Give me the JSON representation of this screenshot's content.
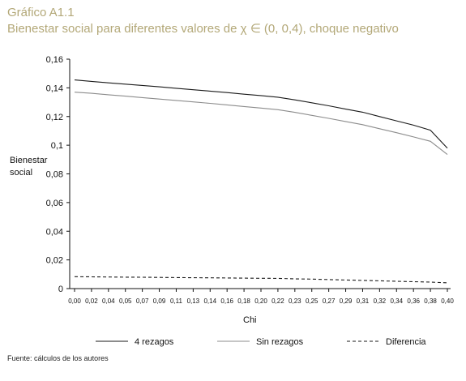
{
  "figure": {
    "label": "Gráfico A1.1",
    "title": "Bienestar social para diferentes valores de χ ∈ (0,  0,4), choque negativo",
    "source": "Fuente: cálculos de los autores"
  },
  "chart_data": {
    "type": "line",
    "xlabel": "Chi",
    "ylabel": "Bienestar social",
    "ylim": [
      0,
      0.16
    ],
    "yticks": [
      "0",
      "0,02",
      "0,04",
      "0,06",
      "0,08",
      "0,1",
      "0,12",
      "0,14",
      "0,16"
    ],
    "x": [
      0.0,
      0.02,
      0.04,
      0.05,
      0.07,
      0.09,
      0.11,
      0.13,
      0.14,
      0.16,
      0.18,
      0.2,
      0.22,
      0.23,
      0.25,
      0.27,
      0.29,
      0.31,
      0.32,
      0.34,
      0.36,
      0.38,
      0.4
    ],
    "xticks": [
      "0,00",
      "0,02",
      "0,04",
      "0,05",
      "0,07",
      "0,09",
      "0,11",
      "0,13",
      "0,14",
      "0,16",
      "0,18",
      "0,20",
      "0,22",
      "0,23",
      "0,25",
      "0,27",
      "0,29",
      "0,31",
      "0,32",
      "0,34",
      "0,36",
      "0,38",
      "0,40"
    ],
    "series": [
      {
        "name": "4 rezagos",
        "color": "#1a1a1a",
        "dash": "solid",
        "values": [
          0.1455,
          0.1445,
          0.1435,
          0.1426,
          0.1417,
          0.1407,
          0.1397,
          0.1387,
          0.1377,
          0.1367,
          0.1356,
          0.1346,
          0.1335,
          0.1316,
          0.1296,
          0.1275,
          0.1252,
          0.123,
          0.12,
          0.117,
          0.114,
          0.1105,
          0.098
        ]
      },
      {
        "name": "Sin rezagos",
        "color": "#8c8c8c",
        "dash": "solid",
        "values": [
          0.137,
          0.1362,
          0.1352,
          0.1342,
          0.1332,
          0.1322,
          0.1312,
          0.1302,
          0.1292,
          0.1281,
          0.127,
          0.1259,
          0.1248,
          0.1229,
          0.1208,
          0.1187,
          0.1165,
          0.1143,
          0.1115,
          0.1087,
          0.1058,
          0.1027,
          0.0935
        ]
      },
      {
        "name": "Diferencia",
        "color": "#1a1a1a",
        "dash": "dashed",
        "values": [
          0.0083,
          0.0082,
          0.0081,
          0.008,
          0.0079,
          0.0078,
          0.0077,
          0.0076,
          0.0075,
          0.0074,
          0.0073,
          0.0072,
          0.0071,
          0.0068,
          0.0066,
          0.0063,
          0.006,
          0.0057,
          0.0054,
          0.0051,
          0.0048,
          0.0045,
          0.004
        ]
      }
    ],
    "legend_position": "bottom"
  }
}
